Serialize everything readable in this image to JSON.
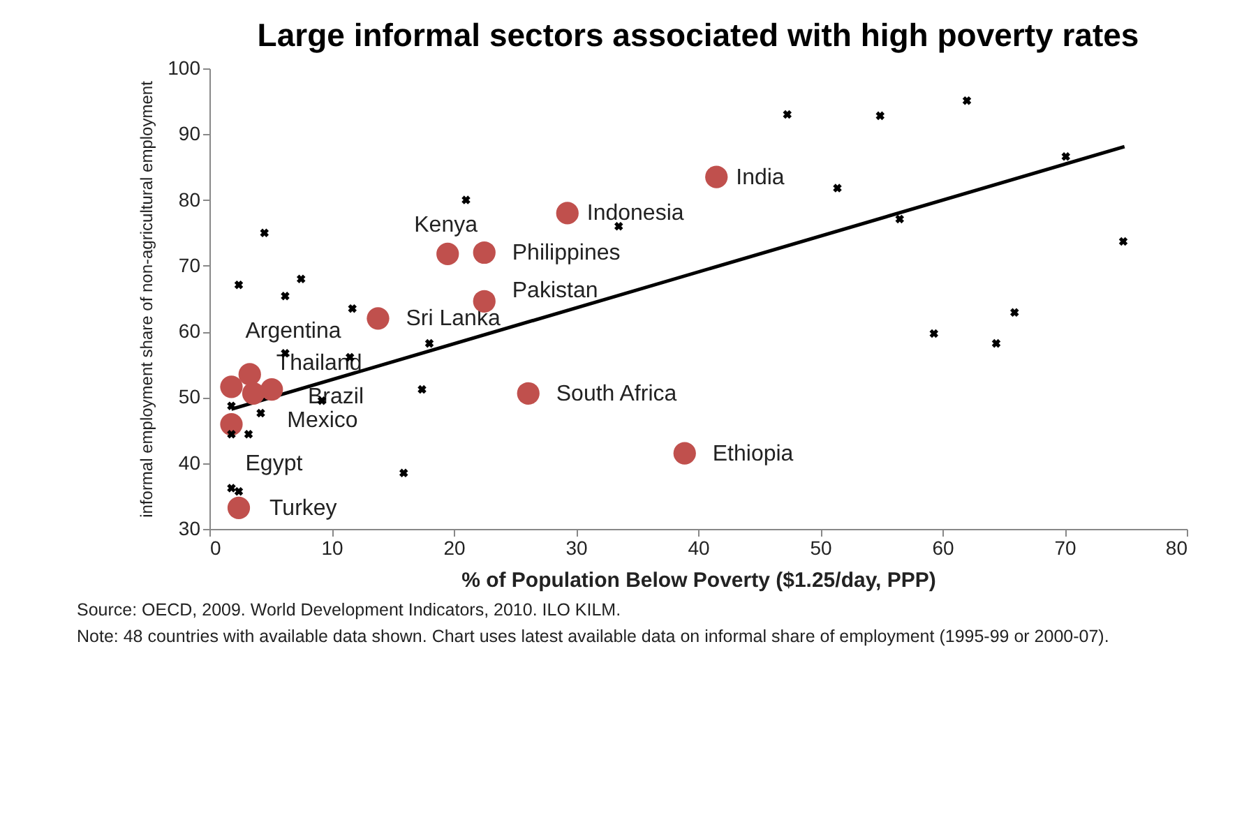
{
  "chart_data": {
    "type": "scatter",
    "title": "Large informal sectors associated with high poverty rates",
    "xlabel": "% of Population Below Poverty ($1.25/day, PPP)",
    "ylabel": "informal employment share of non-agricultural employment",
    "xlim": [
      0,
      80
    ],
    "xticks": [
      0,
      10,
      20,
      30,
      40,
      50,
      60,
      70,
      80
    ],
    "ylim": [
      30,
      100
    ],
    "yticks": [
      30,
      40,
      50,
      60,
      70,
      80,
      90,
      100
    ],
    "grid": false,
    "series": [
      {
        "marker": "cross",
        "color": "#000000",
        "x": [
          2.4,
          4.5,
          6.2,
          7.5,
          11.7,
          21,
          33.5,
          18.0,
          6.2,
          11.5,
          17.4,
          9.2,
          1.8,
          4.2,
          3.2,
          1.8,
          15.9,
          1.8,
          2.4,
          47.3,
          54.9,
          62,
          51.4,
          56.5,
          70.1,
          74.8,
          59.3,
          65.9,
          64.4
        ],
        "values": [
          67.1,
          75,
          65.4,
          68,
          63.5,
          80,
          76,
          58.2,
          56.7,
          56.1,
          51.2,
          49.5,
          48.7,
          47.6,
          44.4,
          44.4,
          38.5,
          36.2,
          35.7,
          93,
          92.8,
          95.1,
          81.8,
          77.1,
          86.6,
          73.7,
          59.7,
          62.9,
          58.2
        ]
      },
      {
        "marker": "circle",
        "color": "#c0504d",
        "x": [
          41.5,
          29.3,
          19.5,
          22.5,
          22.5,
          13.8,
          26.1,
          38.9,
          1.8,
          3.3,
          3.6,
          5.1,
          1.8,
          2.4
        ],
        "values": [
          83.5,
          78,
          71.8,
          72,
          64.6,
          62,
          50.6,
          41.5,
          51.6,
          53.5,
          50.6,
          51.2,
          45.9,
          33.2
        ]
      },
      {
        "type": "line",
        "color": "#000000",
        "line_style": "solid",
        "x": [
          1.8,
          74.9
        ],
        "values": [
          48.2,
          88.1
        ]
      }
    ],
    "annotations": [
      {
        "text": "India",
        "x": 41.5,
        "y": 83.5
      },
      {
        "text": "Indonesia",
        "x": 29.3,
        "y": 78
      },
      {
        "text": "Kenya",
        "x": 19.5,
        "y": 71.8
      },
      {
        "text": "Philippines",
        "x": 22.5,
        "y": 72
      },
      {
        "text": "Pakistan",
        "x": 22.5,
        "y": 64.6
      },
      {
        "text": "Sri Lanka",
        "x": 13.8,
        "y": 62
      },
      {
        "text": "South Africa",
        "x": 26.1,
        "y": 50.6
      },
      {
        "text": "Ethiopia",
        "x": 38.9,
        "y": 41.5
      },
      {
        "text": "Argentina",
        "x": 1.8,
        "y": 51.6
      },
      {
        "text": "Thailand",
        "x": 3.3,
        "y": 53.5
      },
      {
        "text": "Brazil",
        "x": 3.6,
        "y": 50.6
      },
      {
        "text": "Mexico",
        "x": 5.1,
        "y": 51.2
      },
      {
        "text": "Egypt",
        "x": 1.8,
        "y": 45.9
      },
      {
        "text": "Turkey",
        "x": 2.4,
        "y": 33.2
      },
      "Source: OECD, 2009. World Development Indicators, 2010. ILO KILM.",
      "Note: 48 countries with available data shown.  Chart uses latest available data on informal share of employment (1995-99 or 2000-07)."
    ]
  }
}
